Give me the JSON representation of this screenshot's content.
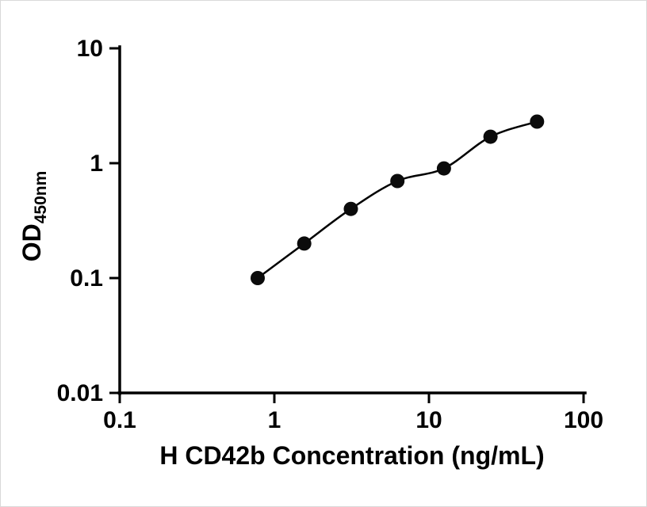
{
  "figure": {
    "background_color": "#ffffff",
    "border_color": "#d9d9d9"
  },
  "chart_data": {
    "type": "scatter",
    "title": "",
    "xlabel": "H CD42b Concentration (ng/mL)",
    "ylabel": "OD",
    "ylabel_subscript": "450nm",
    "xscale": "log",
    "yscale": "log",
    "xlim": [
      0.1,
      100
    ],
    "ylim": [
      0.01,
      10
    ],
    "x": [
      0.78,
      1.56,
      3.125,
      6.25,
      12.5,
      25,
      50
    ],
    "y": [
      0.1,
      0.2,
      0.4,
      0.7,
      0.9,
      1.7,
      2.3
    ],
    "x_ticks": [
      {
        "value": 0.1,
        "label": "0.1"
      },
      {
        "value": 1,
        "label": "1"
      },
      {
        "value": 10,
        "label": "10"
      },
      {
        "value": 100,
        "label": "100"
      }
    ],
    "y_ticks": [
      {
        "value": 0.01,
        "label": "0.01"
      },
      {
        "value": 0.1,
        "label": "0.1"
      },
      {
        "value": 1,
        "label": "1"
      },
      {
        "value": 10,
        "label": "10"
      }
    ],
    "marker": "circle",
    "marker_size": 9,
    "point_color": "#0b0b0b",
    "line_color": "#000000",
    "grid": "off",
    "legend": "none",
    "curve_style": "smooth fit through points"
  }
}
